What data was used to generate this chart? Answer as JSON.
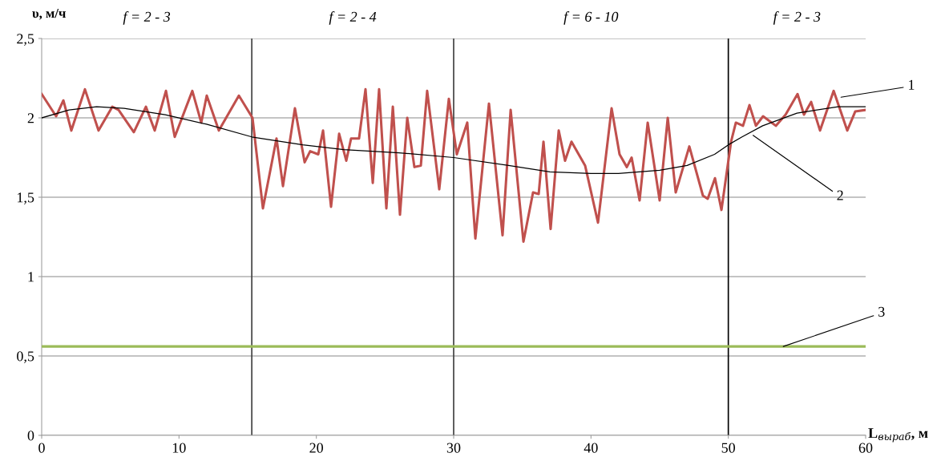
{
  "chart_data": {
    "type": "line",
    "ylabel": "υ, м/ч",
    "xlabel": "L$_{выраб}$, м",
    "xlim": [
      0,
      60
    ],
    "xticks": [
      0,
      10,
      20,
      30,
      40,
      50,
      60
    ],
    "ylim": [
      0,
      2.5
    ],
    "yticks": [
      0,
      {
        "value": 0.5,
        "label": "0,5"
      },
      1,
      {
        "value": 1.5,
        "label": "1,5"
      },
      2,
      {
        "value": 2.5,
        "label": "2,5"
      }
    ],
    "grid": "y",
    "legend": false,
    "marker": "none",
    "line_style": "solid",
    "series": [
      {
        "color": "#c0504d",
        "x": [
          0,
          1.05,
          1.58,
          2.16,
          3.15,
          4.14,
          5.14,
          5.6,
          6.71,
          7.59,
          8.23,
          9.05,
          9.69,
          10.97,
          11.62,
          12.02,
          12.9,
          14.36,
          15.35,
          16.11,
          17.1,
          17.57,
          18.44,
          19.15,
          19.55,
          20.14,
          20.49,
          21.07,
          21.66,
          22.18,
          22.53,
          23.11,
          23.58,
          24.11,
          24.57,
          25.1,
          25.57,
          26.09,
          26.62,
          27.14,
          27.61,
          28.07,
          28.95,
          29.65,
          30.23,
          30.99,
          31.58,
          32.57,
          33.56,
          34.15,
          35.08,
          35.78,
          36.19,
          36.54,
          37.06,
          37.65,
          38.11,
          38.58,
          39.57,
          40.51,
          41.5,
          42.08,
          42.61,
          42.96,
          43.54,
          44.13,
          45.0,
          45.59,
          46.17,
          47.16,
          48.15,
          48.5,
          49.03,
          49.5,
          50.2,
          50.55,
          51.07,
          51.54,
          52.01,
          52.53,
          53.46,
          54.17,
          55.04,
          55.51,
          56.03,
          56.68,
          57.67,
          58.66,
          59.24,
          60
        ],
        "values": [
          2.15,
          2.01,
          2.11,
          1.92,
          2.18,
          1.92,
          2.07,
          2.05,
          1.91,
          2.07,
          1.92,
          2.17,
          1.88,
          2.17,
          1.97,
          2.14,
          1.92,
          2.14,
          2.0,
          1.43,
          1.87,
          1.57,
          2.06,
          1.72,
          1.79,
          1.77,
          1.92,
          1.44,
          1.9,
          1.73,
          1.87,
          1.87,
          2.18,
          1.59,
          2.18,
          1.43,
          2.07,
          1.39,
          2.0,
          1.69,
          1.7,
          2.17,
          1.55,
          2.12,
          1.77,
          1.97,
          1.24,
          2.09,
          1.26,
          2.05,
          1.22,
          1.53,
          1.52,
          1.85,
          1.3,
          1.92,
          1.73,
          1.85,
          1.7,
          1.34,
          2.06,
          1.77,
          1.69,
          1.75,
          1.48,
          1.97,
          1.48,
          2.0,
          1.53,
          1.82,
          1.51,
          1.49,
          1.62,
          1.42,
          1.85,
          1.97,
          1.95,
          2.08,
          1.95,
          2.01,
          1.95,
          2.02,
          2.15,
          2.02,
          2.1,
          1.92,
          2.17,
          1.92,
          2.04,
          2.05
        ]
      },
      {
        "color": "#000000",
        "x": [
          0,
          2,
          4,
          6,
          9,
          12,
          15.3,
          19,
          22,
          26,
          30,
          34,
          37,
          40,
          42,
          45,
          47,
          49,
          50,
          51,
          52.5,
          55,
          58,
          60
        ],
        "values": [
          2.0,
          2.05,
          2.07,
          2.06,
          2.02,
          1.96,
          1.88,
          1.83,
          1.8,
          1.78,
          1.75,
          1.7,
          1.66,
          1.65,
          1.65,
          1.67,
          1.7,
          1.77,
          1.83,
          1.88,
          1.95,
          2.03,
          2.07,
          2.07
        ]
      },
      {
        "color": "#9bbb59",
        "x": [
          0,
          60
        ],
        "values": [
          0.56,
          0.56
        ]
      }
    ],
    "ref_lines": [
      {
        "axis": "x",
        "value": 15.3,
        "color": "#404040"
      },
      {
        "axis": "x",
        "value": 30,
        "color": "#404040"
      },
      {
        "axis": "x",
        "value": 50,
        "color": "#000000"
      }
    ],
    "annotations": [
      "f = 2 - 3",
      "f = 2 - 4",
      "f = 6 - 10",
      "f = 2 - 3",
      {
        "text": "1",
        "x": 58.2,
        "y": 2.13
      },
      {
        "text": "2",
        "x": 51.8,
        "y": 1.89
      },
      {
        "text": "3",
        "x": 54.0,
        "y": 0.56
      }
    ]
  }
}
